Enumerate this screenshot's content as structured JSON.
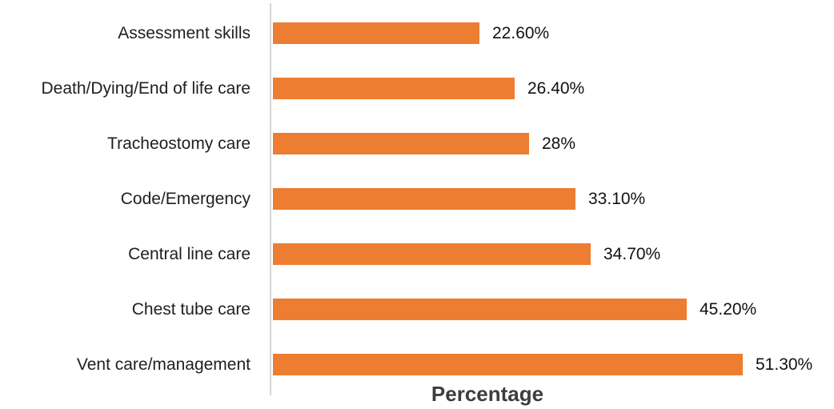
{
  "chart_data": {
    "type": "bar",
    "orientation": "horizontal",
    "title": "",
    "xlabel": "Percentage",
    "ylabel": "",
    "categories": [
      "Assessment skills",
      "Death/Dying/End of life care",
      "Tracheostomy care",
      "Code/Emergency",
      "Central line care",
      "Chest tube care",
      "Vent care/management"
    ],
    "values": [
      22.6,
      26.4,
      28,
      33.1,
      34.7,
      45.2,
      51.3
    ],
    "value_labels": [
      "22.60%",
      "26.40%",
      "28%",
      "33.10%",
      "34.70%",
      "45.20%",
      "51.30%"
    ],
    "xlim": [
      0,
      60
    ],
    "grid": false,
    "legend": false,
    "data_labels_position": "outside-end"
  },
  "colors": {
    "bar": "#ED7D31",
    "axis_line": "#D6D6D6",
    "category_text": "#1f1f1f",
    "value_text": "#111111",
    "axis_title_text": "#3d3d3d",
    "background": "#ffffff"
  }
}
